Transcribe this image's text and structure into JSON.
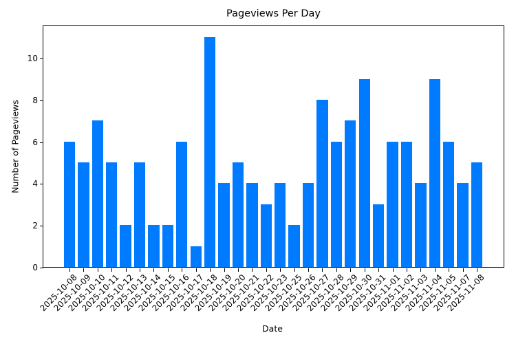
{
  "chart_data": {
    "type": "bar",
    "title": "Pageviews Per Day",
    "xlabel": "Date",
    "ylabel": "Number of Pageviews",
    "ylim": [
      0,
      11.55
    ],
    "yticks": [
      0,
      2,
      4,
      6,
      8,
      10
    ],
    "grid": false,
    "legend": null,
    "bar_color": "#007bff",
    "categories": [
      "2025-10-08",
      "2025-10-09",
      "2025-10-10",
      "2025-10-11",
      "2025-10-12",
      "2025-10-13",
      "2025-10-14",
      "2025-10-15",
      "2025-10-16",
      "2025-10-17",
      "2025-10-18",
      "2025-10-19",
      "2025-10-20",
      "2025-10-21",
      "2025-10-22",
      "2025-10-23",
      "2025-10-25",
      "2025-10-26",
      "2025-10-27",
      "2025-10-28",
      "2025-10-29",
      "2025-10-30",
      "2025-10-31",
      "2025-11-01",
      "2025-11-02",
      "2025-11-03",
      "2025-11-04",
      "2025-11-05",
      "2025-11-07",
      "2025-11-08"
    ],
    "values": [
      6,
      5,
      7,
      5,
      2,
      5,
      2,
      2,
      6,
      1,
      11,
      4,
      5,
      4,
      3,
      4,
      2,
      4,
      8,
      6,
      7,
      9,
      3,
      6,
      6,
      4,
      9,
      6,
      4,
      5
    ]
  }
}
